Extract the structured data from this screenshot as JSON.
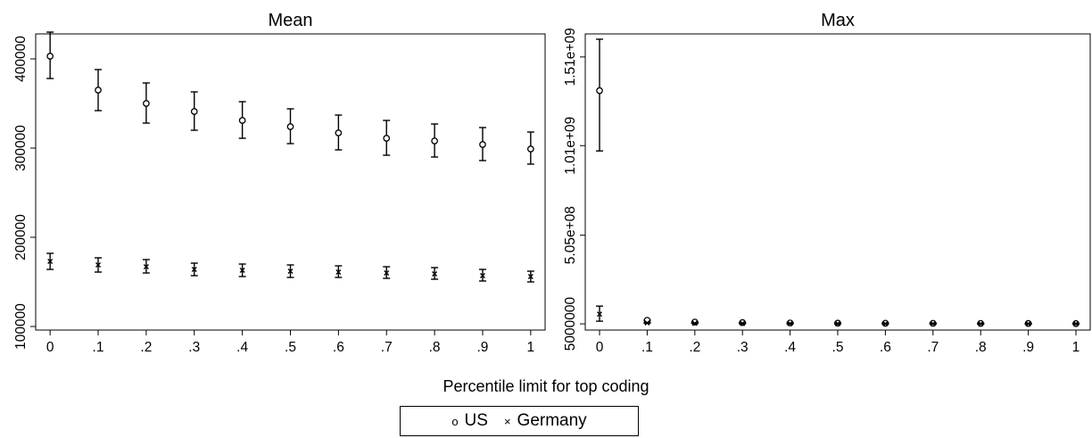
{
  "figure": {
    "xlabel": "Percentile limit for top coding"
  },
  "legend": {
    "items": [
      {
        "label": "US",
        "marker": "circle-marker-icon",
        "symbol": "o"
      },
      {
        "label": "Germany",
        "marker": "x-marker-icon",
        "symbol": "×"
      }
    ]
  },
  "chart_data": [
    {
      "type": "scatter",
      "title": "Mean",
      "xlabel": "",
      "ylabel": "",
      "x": [
        0,
        0.1,
        0.2,
        0.3,
        0.4,
        0.5,
        0.6,
        0.7,
        0.8,
        0.9,
        1
      ],
      "xticks": [
        0,
        0.1,
        0.2,
        0.3,
        0.4,
        0.5,
        0.6,
        0.7,
        0.8,
        0.9,
        1
      ],
      "xtick_labels": [
        "0",
        ".1",
        ".2",
        ".3",
        ".4",
        ".5",
        ".6",
        ".7",
        ".8",
        ".9",
        "1"
      ],
      "xlim": [
        -0.03,
        1.03
      ],
      "ylim": [
        96000,
        428000
      ],
      "yticks": [
        100000,
        200000,
        300000,
        400000
      ],
      "ytick_labels": [
        "100000",
        "200000",
        "300000",
        "400000"
      ],
      "grid": false,
      "error_bars": true,
      "series": [
        {
          "name": "US",
          "marker": "circle",
          "values": [
            403000,
            365000,
            350000,
            341000,
            331000,
            324000,
            317000,
            311000,
            308000,
            304000,
            299000
          ],
          "lower": [
            378000,
            342000,
            328000,
            320000,
            311000,
            305000,
            298000,
            292000,
            290000,
            286000,
            282000
          ],
          "upper": [
            430000,
            388000,
            373000,
            363000,
            352000,
            344000,
            337000,
            331000,
            327000,
            323000,
            318000
          ]
        },
        {
          "name": "Germany",
          "marker": "x",
          "values": [
            173000,
            169000,
            167000,
            164000,
            163000,
            162000,
            161000,
            160000,
            159000,
            157000,
            156000
          ],
          "lower": [
            164000,
            161000,
            160000,
            157000,
            156000,
            155000,
            155000,
            154000,
            153000,
            151000,
            150000
          ],
          "upper": [
            182000,
            177000,
            175000,
            171000,
            170000,
            169000,
            168000,
            167000,
            166000,
            164000,
            162000
          ]
        }
      ]
    },
    {
      "type": "scatter",
      "title": "Max",
      "xlabel": "",
      "ylabel": "",
      "x": [
        0,
        0.1,
        0.2,
        0.3,
        0.4,
        0.5,
        0.6,
        0.7,
        0.8,
        0.9,
        1
      ],
      "xticks": [
        0,
        0.1,
        0.2,
        0.3,
        0.4,
        0.5,
        0.6,
        0.7,
        0.8,
        0.9,
        1
      ],
      "xtick_labels": [
        "0",
        ".1",
        ".2",
        ".3",
        ".4",
        ".5",
        ".6",
        ".7",
        ".8",
        ".9",
        "1"
      ],
      "xlim": [
        -0.03,
        1.03
      ],
      "ylim": [
        -30000000,
        1640000000
      ],
      "yticks": [
        5000000,
        505000000,
        1010000000,
        1510000000
      ],
      "ytick_labels": [
        "5000000",
        "5.05e+08",
        "1.01e+09",
        "1.51e+09"
      ],
      "grid": false,
      "error_bars": true,
      "series": [
        {
          "name": "US",
          "marker": "circle",
          "values": [
            1320000000,
            25000000,
            15000000,
            12000000,
            10000000,
            9000000,
            8500000,
            8000000,
            7500000,
            7000000,
            6500000
          ],
          "lower": [
            980000000,
            22000000,
            13000000,
            10000000,
            8500000,
            7500000,
            7000000,
            6500000,
            6000000,
            5500000,
            5000000
          ],
          "upper": [
            1610000000,
            28000000,
            17000000,
            14000000,
            11500000,
            10500000,
            10000000,
            9500000,
            9000000,
            8500000,
            8000000
          ]
        },
        {
          "name": "Germany",
          "marker": "x",
          "values": [
            60000000,
            10000000,
            8000000,
            7000000,
            6500000,
            6000000,
            5800000,
            5600000,
            5400000,
            5200000,
            5000000
          ],
          "lower": [
            20000000,
            8000000,
            6500000,
            5500000,
            5000000,
            4800000,
            4600000,
            4400000,
            4200000,
            4000000,
            3800000
          ],
          "upper": [
            105000000,
            12000000,
            9500000,
            8500000,
            8000000,
            7200000,
            7000000,
            6800000,
            6600000,
            6400000,
            6200000
          ]
        }
      ]
    }
  ]
}
